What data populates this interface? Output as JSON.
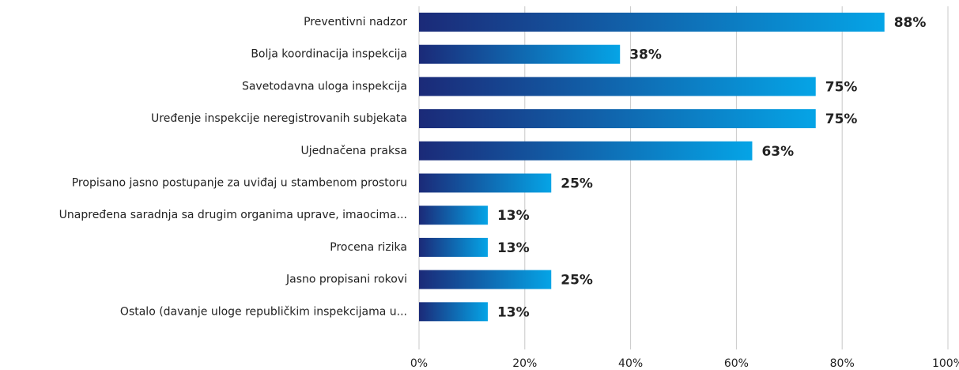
{
  "chart_data": {
    "type": "barh",
    "categories": [
      "Preventivni nadzor",
      "Bolja koordinacija inspekcija",
      "Savetodavna uloga inspekcija",
      "Uređenje inspekcije neregistrovanih subjekata",
      "Ujednačena praksa",
      "Propisano jasno postupanje za uviđaj u stambenom prostoru",
      "Unapređena saradnja sa drugim organima uprave, imaocima...",
      "Procena rizika",
      "Jasno propisani rokovi",
      "Ostalo (davanje uloge republičkim inspekcijama u..."
    ],
    "values": [
      88,
      38,
      75,
      75,
      63,
      25,
      13,
      13,
      25,
      13
    ],
    "value_labels": [
      "88%",
      "38%",
      "75%",
      "75%",
      "63%",
      "25%",
      "13%",
      "13%",
      "25%",
      "13%"
    ],
    "gradient": [
      "#1b2a78",
      "#05a4e6"
    ],
    "label_color": "#1b4c8e",
    "xlim": [
      0,
      100
    ],
    "xticks": [
      {
        "value": 0,
        "label": "0%"
      },
      {
        "value": 20,
        "label": "20%"
      },
      {
        "value": 40,
        "label": "40%"
      },
      {
        "value": 60,
        "label": "60%"
      },
      {
        "value": 80,
        "label": "80%"
      },
      {
        "value": 100,
        "label": "100%"
      }
    ],
    "grid": true
  }
}
